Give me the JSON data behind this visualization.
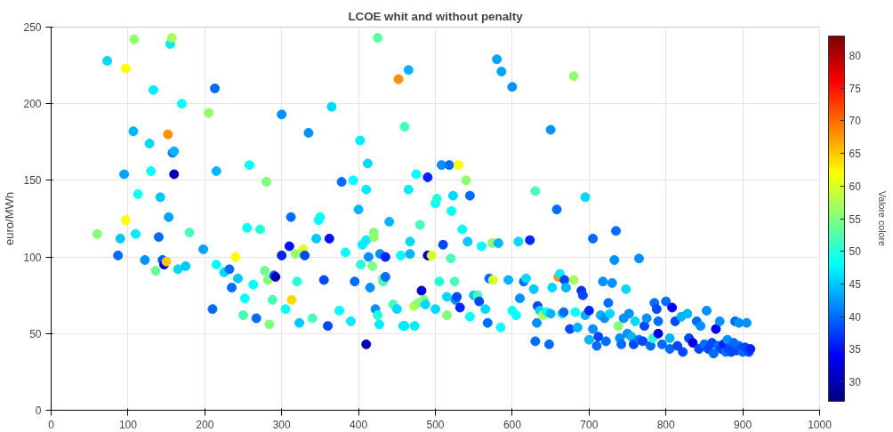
{
  "chart_data": {
    "type": "scatter",
    "title": "LCOE whit and without penalty",
    "ylabel": "euro/MWh",
    "clabel": "Valore colore",
    "xlim": [
      0,
      1000
    ],
    "ylim": [
      0,
      250
    ],
    "xticks": [
      0,
      100,
      200,
      300,
      400,
      500,
      600,
      700,
      800,
      900,
      1000
    ],
    "yticks": [
      0,
      50,
      100,
      150,
      200,
      250
    ],
    "clim": [
      27,
      83
    ],
    "cticks": [
      30,
      35,
      40,
      45,
      50,
      55,
      60,
      65,
      70,
      75,
      80
    ],
    "grid": true,
    "marker": "circle",
    "x": [
      60,
      73,
      87,
      90,
      95,
      97,
      97,
      107,
      108,
      110,
      113,
      122,
      128,
      130,
      133,
      136,
      140,
      142,
      145,
      147,
      150,
      152,
      153,
      155,
      157,
      158,
      160,
      160,
      165,
      170,
      175,
      180,
      198,
      205,
      210,
      213,
      215,
      215,
      225,
      232,
      235,
      240,
      243,
      250,
      252,
      255,
      258,
      263,
      267,
      272,
      278,
      280,
      282,
      284,
      288,
      290,
      292,
      300,
      300,
      305,
      310,
      312,
      313,
      318,
      320,
      323,
      328,
      330,
      335,
      340,
      345,
      348,
      350,
      355,
      360,
      362,
      365,
      375,
      378,
      383,
      390,
      393,
      395,
      400,
      402,
      403,
      405,
      410,
      410,
      410,
      412,
      413,
      415,
      418,
      420,
      420,
      422,
      425,
      425,
      427,
      428,
      432,
      432,
      435,
      435,
      440,
      445,
      450,
      452,
      455,
      458,
      460,
      460,
      465,
      465,
      467,
      467,
      472,
      473,
      475,
      478,
      480,
      482,
      485,
      487,
      490,
      490,
      495,
      500,
      500,
      502,
      505,
      508,
      510,
      515,
      515,
      518,
      520,
      521,
      523,
      525,
      526,
      528,
      530,
      532,
      535,
      540,
      542,
      545,
      545,
      550,
      555,
      557,
      560,
      565,
      568,
      570,
      574,
      575,
      580,
      582,
      585,
      586,
      595,
      600,
      600,
      605,
      608,
      610,
      615,
      618,
      623,
      628,
      630,
      630,
      632,
      633,
      636,
      640,
      645,
      648,
      650,
      650,
      652,
      658,
      660,
      662,
      665,
      667,
      668,
      670,
      675,
      680,
      680,
      682,
      685,
      690,
      692,
      695,
      695,
      700,
      700,
      705,
      705,
      710,
      712,
      715,
      718,
      720,
      722,
      725,
      727,
      730,
      733,
      735,
      738,
      740,
      742,
      745,
      748,
      750,
      752,
      755,
      758,
      760,
      765,
      765,
      770,
      772,
      775,
      780,
      783,
      785,
      788,
      790,
      790,
      795,
      800,
      805,
      805,
      808,
      812,
      815,
      820,
      822,
      828,
      830,
      835,
      840,
      843,
      845,
      850,
      853,
      855,
      860,
      862,
      865,
      868,
      870,
      872,
      875,
      878,
      880,
      882,
      885,
      888,
      890,
      892,
      895,
      895,
      898,
      900,
      903,
      905,
      908,
      910
    ],
    "values": [
      115,
      228,
      101,
      112,
      154,
      223,
      124,
      182,
      242,
      115,
      141,
      98,
      174,
      156,
      209,
      91,
      113,
      139,
      98,
      95,
      97,
      180,
      126,
      239,
      243,
      168,
      154,
      169,
      92,
      200,
      94,
      116,
      105,
      194,
      66,
      210,
      156,
      95,
      90,
      92,
      80,
      100,
      86,
      62,
      73,
      119,
      160,
      82,
      60,
      118,
      91,
      149,
      85,
      56,
      72,
      88,
      87,
      101,
      193,
      66,
      107,
      126,
      72,
      102,
      84,
      57,
      105,
      101,
      181,
      60,
      112,
      124,
      126,
      85,
      55,
      112,
      198,
      65,
      149,
      103,
      58,
      150,
      84,
      131,
      176,
      95,
      108,
      43,
      111,
      144,
      161,
      100,
      80,
      94,
      116,
      113,
      66,
      62,
      243,
      56,
      102,
      84,
      86,
      100,
      87,
      123,
      69,
      66,
      216,
      101,
      55,
      185,
      55,
      222,
      144,
      110,
      102,
      68,
      55,
      154,
      70,
      121,
      78,
      72,
      69,
      101,
      152,
      101,
      66,
      135,
      138,
      84,
      160,
      108,
      74,
      62,
      160,
      99,
      130,
      140,
      84,
      72,
      74,
      160,
      67,
      118,
      150,
      110,
      140,
      61,
      75,
      75,
      71,
      107,
      66,
      57,
      86,
      109,
      85,
      229,
      109,
      54,
      221,
      85,
      211,
      65,
      62,
      110,
      73,
      84,
      86,
      111,
      79,
      143,
      45,
      57,
      68,
      65,
      62,
      64,
      43,
      183,
      63,
      80,
      131,
      87,
      89,
      63,
      64,
      85,
      80,
      53,
      85,
      218,
      64,
      54,
      78,
      75,
      139,
      62,
      65,
      46,
      112,
      53,
      42,
      48,
      62,
      84,
      60,
      45,
      70,
      63,
      83,
      98,
      117,
      55,
      47,
      43,
      60,
      79,
      50,
      63,
      48,
      43,
      58,
      99,
      46,
      45,
      55,
      60,
      42,
      47,
      70,
      66,
      58,
      50,
      43,
      71,
      47,
      40,
      67,
      58,
      42,
      61,
      38,
      63,
      47,
      44,
      58,
      40,
      55,
      43,
      65,
      40,
      44,
      37,
      53,
      42,
      58,
      40,
      43,
      38,
      46,
      40,
      38,
      44,
      58,
      39,
      57,
      42,
      40,
      38,
      41,
      57,
      38,
      40
    ],
    "cvalues": [
      55,
      46,
      40,
      45,
      43,
      62,
      62,
      44,
      56,
      47,
      49,
      42,
      46,
      48,
      47,
      54,
      40,
      45,
      39,
      33,
      65,
      68,
      43,
      47,
      57,
      40,
      30,
      44,
      46,
      48,
      45,
      52,
      43,
      56,
      40,
      40,
      44,
      48,
      46,
      40,
      40,
      62,
      45,
      52,
      48,
      48,
      48,
      48,
      40,
      50,
      54,
      55,
      55,
      55,
      52,
      40,
      30,
      36,
      42,
      48,
      35,
      40,
      64,
      56,
      50,
      45,
      60,
      38,
      42,
      52,
      45,
      48,
      48,
      38,
      38,
      35,
      46,
      48,
      40,
      48,
      47,
      48,
      40,
      44,
      47,
      50,
      47,
      30,
      47,
      47,
      46,
      42,
      42,
      55,
      55,
      56,
      42,
      50,
      53,
      47,
      42,
      52,
      52,
      36,
      40,
      44,
      52,
      46,
      68,
      48,
      47,
      52,
      47,
      44,
      47,
      46,
      44,
      58,
      47,
      48,
      55,
      52,
      32,
      55,
      46,
      30,
      36,
      60,
      46,
      48,
      50,
      50,
      42,
      38,
      46,
      55,
      40,
      52,
      48,
      46,
      52,
      42,
      38,
      62,
      36,
      48,
      56,
      45,
      40,
      48,
      45,
      52,
      38,
      48,
      46,
      40,
      40,
      56,
      60,
      43,
      44,
      48,
      43,
      44,
      42,
      48,
      48,
      46,
      42,
      40,
      46,
      36,
      45,
      52,
      40,
      42,
      38,
      46,
      58,
      48,
      40,
      42,
      44,
      46,
      40,
      68,
      47,
      47,
      40,
      38,
      44,
      38,
      57,
      56,
      48,
      44,
      37,
      38,
      46,
      44,
      36,
      44,
      40,
      42,
      40,
      38,
      44,
      42,
      42,
      40,
      40,
      46,
      42,
      42,
      40,
      55,
      42,
      40,
      42,
      46,
      42,
      42,
      44,
      38,
      46,
      42,
      40,
      38,
      38,
      42,
      40,
      50,
      40,
      38,
      40,
      32,
      40,
      40,
      44,
      40,
      34,
      38,
      38,
      44,
      38,
      44,
      38,
      32,
      40,
      38,
      42,
      40,
      42,
      38,
      38,
      40,
      34,
      40,
      42,
      38,
      36,
      40,
      42,
      38,
      38,
      40,
      40,
      38,
      42,
      40,
      38,
      40,
      38,
      42,
      38,
      36
    ]
  }
}
